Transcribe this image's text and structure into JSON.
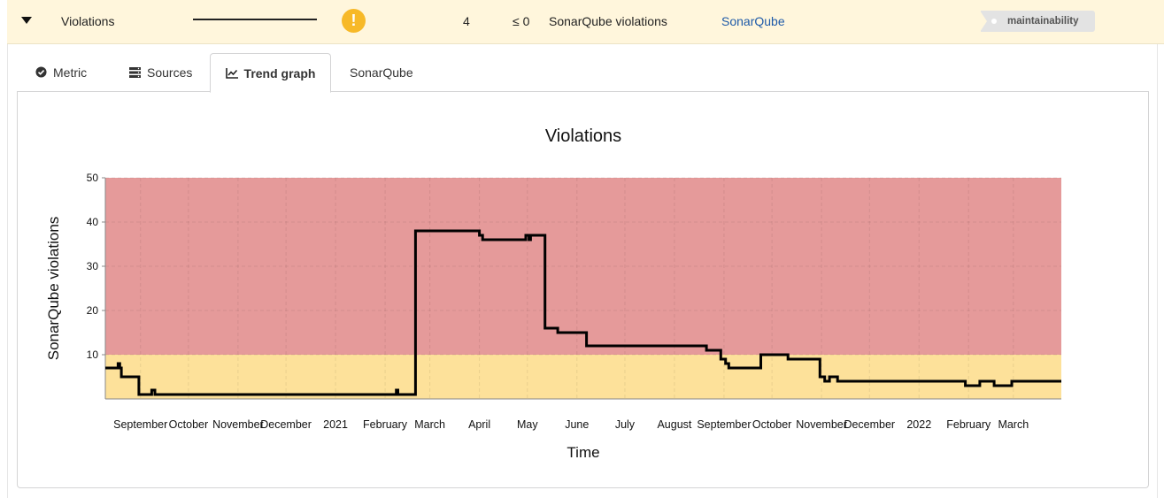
{
  "row": {
    "name": "Violations",
    "status_icon": "exclamation-icon",
    "value": "4",
    "target": "≤ 0",
    "unit": "SonarQube violations",
    "source": "SonarQube",
    "tag": "maintainability",
    "colors": {
      "row_bg": "#fff6dc",
      "warning": "#f7b928",
      "link": "#1e5aa8"
    }
  },
  "tabs": [
    {
      "label": "Metric",
      "icon": "check-circle-icon"
    },
    {
      "label": "Sources",
      "icon": "server-icon"
    },
    {
      "label": "Trend graph",
      "icon": "line-chart-icon",
      "active": true
    },
    {
      "label": "SonarQube"
    }
  ],
  "chart_data": {
    "type": "line",
    "title": "Violations",
    "xlabel": "Time",
    "ylabel": "SonarQube violations",
    "ylim": [
      0,
      50
    ],
    "yticks": [
      10,
      20,
      30,
      40,
      50
    ],
    "xlim": [
      "2020-08-10",
      "2022-03-31"
    ],
    "xticks": [
      {
        "date": "2020-09-01",
        "label": "September"
      },
      {
        "date": "2020-10-01",
        "label": "October"
      },
      {
        "date": "2020-11-01",
        "label": "November"
      },
      {
        "date": "2020-12-01",
        "label": "December"
      },
      {
        "date": "2021-01-01",
        "label": "2021"
      },
      {
        "date": "2021-02-01",
        "label": "February"
      },
      {
        "date": "2021-03-01",
        "label": "March"
      },
      {
        "date": "2021-04-01",
        "label": "April"
      },
      {
        "date": "2021-05-01",
        "label": "May"
      },
      {
        "date": "2021-06-01",
        "label": "June"
      },
      {
        "date": "2021-07-01",
        "label": "July"
      },
      {
        "date": "2021-08-01",
        "label": "August"
      },
      {
        "date": "2021-09-01",
        "label": "September"
      },
      {
        "date": "2021-10-01",
        "label": "October"
      },
      {
        "date": "2021-11-01",
        "label": "November"
      },
      {
        "date": "2021-12-01",
        "label": "December"
      },
      {
        "date": "2022-01-01",
        "label": "2022"
      },
      {
        "date": "2022-02-01",
        "label": "February"
      },
      {
        "date": "2022-03-01",
        "label": "March"
      }
    ],
    "bands": [
      {
        "from": 0,
        "to": 10,
        "color": "#fde19a"
      },
      {
        "from": 10,
        "to": 50,
        "color": "#e59a9a"
      }
    ],
    "grid": true,
    "line_color": "#000000",
    "series": [
      {
        "step": true,
        "points": [
          [
            "2020-08-10",
            7
          ],
          [
            "2020-08-18",
            8
          ],
          [
            "2020-08-19",
            7
          ],
          [
            "2020-08-20",
            5
          ],
          [
            "2020-08-31",
            1
          ],
          [
            "2020-09-08",
            2
          ],
          [
            "2020-09-10",
            1
          ],
          [
            "2021-02-08",
            2
          ],
          [
            "2021-02-09",
            1
          ],
          [
            "2021-02-20",
            38
          ],
          [
            "2021-04-01",
            37
          ],
          [
            "2021-04-03",
            36
          ],
          [
            "2021-04-30",
            37
          ],
          [
            "2021-05-02",
            36
          ],
          [
            "2021-05-03",
            37
          ],
          [
            "2021-05-12",
            16
          ],
          [
            "2021-05-20",
            15
          ],
          [
            "2021-06-07",
            12
          ],
          [
            "2021-08-21",
            11
          ],
          [
            "2021-08-30",
            9
          ],
          [
            "2021-09-02",
            8
          ],
          [
            "2021-09-04",
            7
          ],
          [
            "2021-09-24",
            10
          ],
          [
            "2021-10-11",
            9
          ],
          [
            "2021-10-31",
            5
          ],
          [
            "2021-11-03",
            4
          ],
          [
            "2021-11-06",
            5
          ],
          [
            "2021-11-11",
            4
          ],
          [
            "2022-01-30",
            3
          ],
          [
            "2022-02-08",
            4
          ],
          [
            "2022-02-17",
            3
          ],
          [
            "2022-02-28",
            4
          ],
          [
            "2022-03-31",
            4
          ]
        ]
      }
    ]
  }
}
